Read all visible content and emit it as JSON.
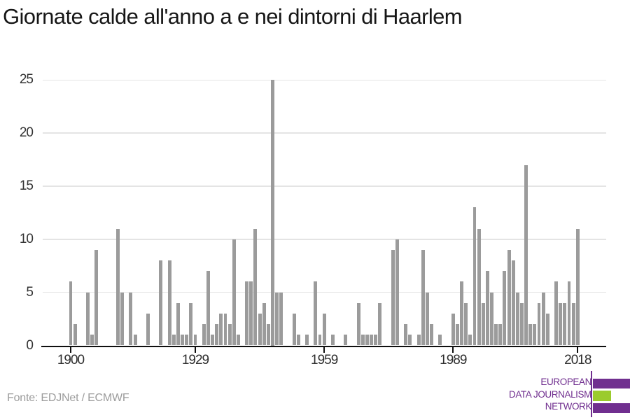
{
  "title": "Giornate calde all'anno a e nei dintorni di Haarlem",
  "source": "Fonte: EDJNet / ECMWF",
  "logo": {
    "line1": "EUROPEAN",
    "line2": "DATA JOURNALISM",
    "line3": "NETWORK",
    "purple": "#702f8f",
    "green": "#9bcb2d"
  },
  "chart_data": {
    "type": "bar",
    "title": "Giornate calde all'anno a e nei dintorni di Haarlem",
    "xlabel": "",
    "ylabel": "",
    "start_year": 1900,
    "end_year": 2018,
    "xticks": [
      1900,
      1929,
      1959,
      1989,
      2018
    ],
    "yticks": [
      0,
      5,
      10,
      15,
      20,
      25
    ],
    "ylim": [
      0,
      25
    ],
    "grid": "horizontal",
    "bar_color": "#9b9b9b",
    "values": [
      6,
      2,
      0,
      0,
      5,
      1,
      9,
      0,
      0,
      0,
      0,
      11,
      5,
      0,
      5,
      1,
      0,
      0,
      3,
      0,
      0,
      8,
      0,
      8,
      1,
      4,
      1,
      1,
      4,
      1,
      0,
      2,
      7,
      1,
      2,
      3,
      3,
      2,
      10,
      1,
      0,
      6,
      6,
      11,
      3,
      4,
      2,
      25,
      5,
      5,
      0,
      0,
      3,
      1,
      0,
      1,
      0,
      6,
      1,
      3,
      0,
      1,
      0,
      0,
      1,
      0,
      0,
      4,
      1,
      1,
      1,
      1,
      4,
      0,
      0,
      9,
      10,
      0,
      2,
      1,
      0,
      1,
      9,
      5,
      2,
      0,
      1,
      0,
      0,
      3,
      2,
      6,
      4,
      1,
      13,
      11,
      4,
      7,
      5,
      2,
      2,
      7,
      9,
      8,
      5,
      4,
      17,
      2,
      2,
      4,
      5,
      3,
      0,
      6,
      4,
      4,
      6,
      4,
      11
    ]
  }
}
